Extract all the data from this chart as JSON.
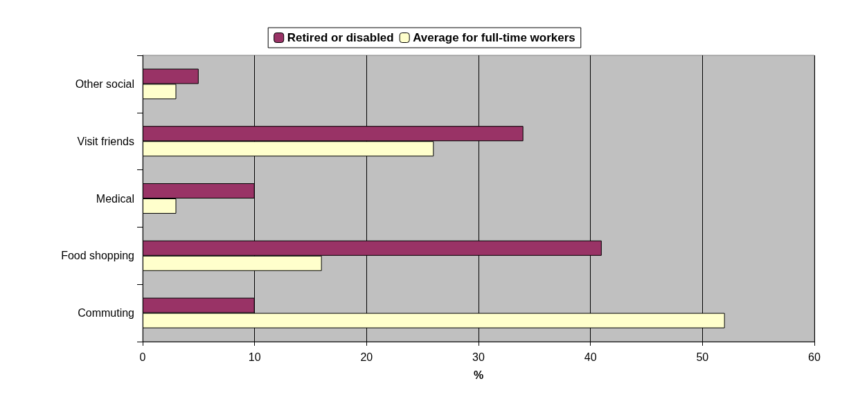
{
  "chart_data": {
    "type": "bar",
    "orientation": "horizontal",
    "xlabel": "%",
    "categories": [
      "Other social",
      "Visit friends",
      "Medical",
      "Food shopping",
      "Commuting"
    ],
    "series": [
      {
        "name": "Retired or disabled",
        "color": "#993366",
        "values": [
          5,
          34,
          10,
          41,
          10
        ]
      },
      {
        "name": "Average for full-time workers",
        "color": "#ffffcc",
        "values": [
          3,
          26,
          3,
          16,
          52
        ]
      }
    ],
    "xlim": [
      0,
      60
    ],
    "xticks": [
      0,
      10,
      20,
      30,
      40,
      50,
      60
    ],
    "grid": "x",
    "legend": "top"
  }
}
